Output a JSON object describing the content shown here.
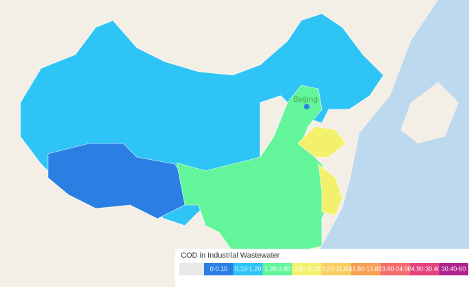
{
  "map": {
    "city_label": "Beijing",
    "legend": {
      "title": "COD in Industrial Wastewater",
      "items": [
        {
          "label": "0-0.10",
          "color": "#2b7fe3"
        },
        {
          "label": "0.10-1.20",
          "color": "#2ec4f6"
        },
        {
          "label": "1.20-3.80",
          "color": "#63f59a"
        },
        {
          "label": "3.80-9.23",
          "color": "#f3f06c"
        },
        {
          "label": "9.23-11.80",
          "color": "#f7cf5e"
        },
        {
          "label": "11.80-13.80",
          "color": "#f7a052"
        },
        {
          "label": "13.80-24.90",
          "color": "#f46c6c"
        },
        {
          "label": "24.90-30.40",
          "color": "#e5427d"
        },
        {
          "label": "30.40-60",
          "color": "#b0228e"
        }
      ]
    }
  }
}
